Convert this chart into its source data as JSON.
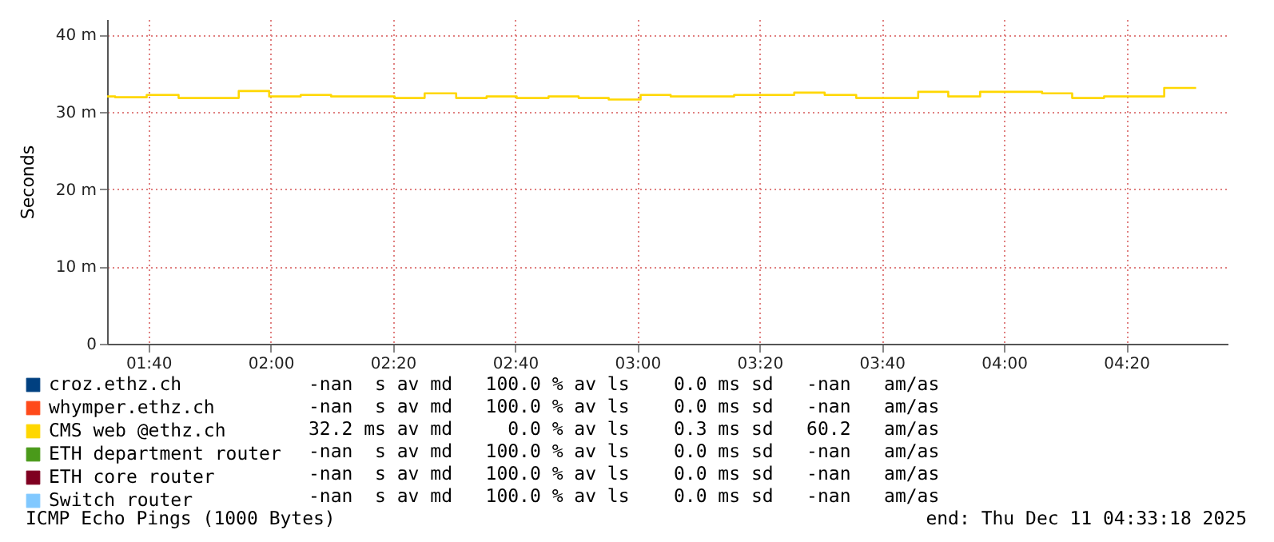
{
  "chart_data": {
    "type": "step",
    "ylabel": "Seconds",
    "x": [
      1.554,
      1.576,
      1.662,
      1.749,
      1.913,
      1.996,
      2.082,
      2.165,
      2.338,
      2.42,
      2.506,
      2.589,
      2.671,
      2.758,
      2.84,
      2.922,
      3.009,
      3.091,
      3.264,
      3.428,
      3.511,
      3.597,
      3.766,
      3.848,
      3.935,
      4.104,
      4.186,
      4.273,
      4.437,
      4.524
    ],
    "series": [
      {
        "name": "croz.ethz.ch",
        "color": "#004080",
        "values": [
          null,
          null,
          null,
          null,
          null,
          null,
          null,
          null,
          null,
          null,
          null,
          null,
          null,
          null,
          null,
          null,
          null,
          null,
          null,
          null,
          null,
          null,
          null,
          null,
          null,
          null,
          null,
          null,
          null,
          null
        ]
      },
      {
        "name": "whymper.ethz.ch",
        "color": "#ff4a1a",
        "values": [
          null,
          null,
          null,
          null,
          null,
          null,
          null,
          null,
          null,
          null,
          null,
          null,
          null,
          null,
          null,
          null,
          null,
          null,
          null,
          null,
          null,
          null,
          null,
          null,
          null,
          null,
          null,
          null,
          null,
          null
        ]
      },
      {
        "name": "CMS web @ethz.ch",
        "color": "#ffd700",
        "values": [
          32.0,
          31.9,
          32.2,
          31.8,
          32.7,
          32.0,
          32.2,
          32.0,
          31.8,
          32.4,
          31.8,
          32.0,
          31.8,
          32.0,
          31.8,
          31.6,
          32.2,
          32.0,
          32.2,
          32.5,
          32.2,
          31.8,
          32.6,
          32.0,
          32.6,
          32.4,
          31.8,
          32.0,
          33.1,
          33.1
        ]
      },
      {
        "name": "ETH department router",
        "color": "#4a9a1a",
        "values": [
          null,
          null,
          null,
          null,
          null,
          null,
          null,
          null,
          null,
          null,
          null,
          null,
          null,
          null,
          null,
          null,
          null,
          null,
          null,
          null,
          null,
          null,
          null,
          null,
          null,
          null,
          null,
          null,
          null,
          null
        ]
      },
      {
        "name": "ETH core router",
        "color": "#7f0020",
        "values": [
          null,
          null,
          null,
          null,
          null,
          null,
          null,
          null,
          null,
          null,
          null,
          null,
          null,
          null,
          null,
          null,
          null,
          null,
          null,
          null,
          null,
          null,
          null,
          null,
          null,
          null,
          null,
          null,
          null,
          null
        ]
      },
      {
        "name": "Switch router",
        "color": "#80c8ff",
        "values": [
          null,
          null,
          null,
          null,
          null,
          null,
          null,
          null,
          null,
          null,
          null,
          null,
          null,
          null,
          null,
          null,
          null,
          null,
          null,
          null,
          null,
          null,
          null,
          null,
          null,
          null,
          null,
          null,
          null,
          null
        ]
      }
    ],
    "xlim": [
      1.554,
      4.61
    ],
    "xticks": [
      {
        "value": 1.6667,
        "label": "01:40"
      },
      {
        "value": 2,
        "label": "02:00"
      },
      {
        "value": 2.3333,
        "label": "02:20"
      },
      {
        "value": 2.6667,
        "label": "02:40"
      },
      {
        "value": 3,
        "label": "03:00"
      },
      {
        "value": 3.3333,
        "label": "03:20"
      },
      {
        "value": 3.6667,
        "label": "03:40"
      },
      {
        "value": 4,
        "label": "04:00"
      },
      {
        "value": 4.3333,
        "label": "04:20"
      }
    ],
    "ylim": [
      0,
      42
    ],
    "yticks": [
      0,
      {
        "value": 10,
        "label": "10 m"
      },
      {
        "value": 20,
        "label": "20 m"
      },
      {
        "value": 30,
        "label": "30 m"
      },
      {
        "value": 40,
        "label": "40 m"
      }
    ],
    "grid": true,
    "legend": "bottom",
    "marker": "none",
    "line_style": "solid",
    "annotations": [
      "-nan  s av md   100.0 % av ls    0.0 ms sd   -nan   am/as",
      "-nan  s av md   100.0 % av ls    0.0 ms sd   -nan   am/as",
      "32.2 ms av md     0.0 % av ls    0.3 ms sd   60.2   am/as",
      "  -nan  s av md   100.0 % av ls    0.0 ms sd   -nan   am/as",
      "-nan  s av md   100.0 % av ls    0.0 ms sd   -nan   am/as",
      "-nan  s av md   100.0 % av ls    0.0 ms sd   -nan   am/as",
      "ICMP Echo Pings (1000 Bytes)",
      "end: Thu Dec 11 04:33:18 2025"
    ]
  }
}
